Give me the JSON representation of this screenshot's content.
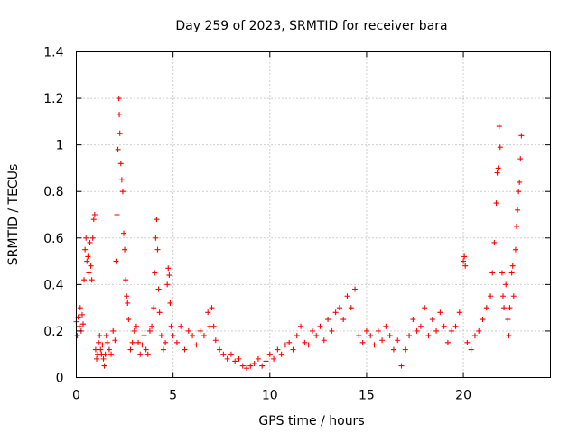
{
  "chart_data": {
    "type": "scatter",
    "title": "Day 259 of 2023, SRMTID for receiver bara",
    "xlabel": "GPS time / hours",
    "ylabel": "SRMTID / TECUs",
    "xlim": [
      0,
      24.5
    ],
    "ylim": [
      0,
      1.4
    ],
    "xticks": [
      0,
      5,
      10,
      15,
      20
    ],
    "xtick_labels": [
      "0",
      "5",
      "10",
      "15",
      "20"
    ],
    "yticks": [
      0,
      0.2,
      0.4,
      0.6,
      0.8,
      1.0,
      1.2,
      1.4
    ],
    "ytick_labels": [
      "0",
      "0.2",
      "0.4",
      "0.6",
      "0.8",
      "1",
      "1.2",
      "1.4"
    ],
    "grid": true,
    "marker": "+",
    "color": "#ff0000",
    "series": [
      {
        "name": "SRMTID",
        "points": [
          [
            0.0,
            0.24
          ],
          [
            0.05,
            0.18
          ],
          [
            0.1,
            0.26
          ],
          [
            0.15,
            0.22
          ],
          [
            0.2,
            0.3
          ],
          [
            0.25,
            0.2
          ],
          [
            0.3,
            0.27
          ],
          [
            0.35,
            0.23
          ],
          [
            0.4,
            0.42
          ],
          [
            0.45,
            0.55
          ],
          [
            0.5,
            0.6
          ],
          [
            0.55,
            0.5
          ],
          [
            0.6,
            0.52
          ],
          [
            0.65,
            0.45
          ],
          [
            0.7,
            0.58
          ],
          [
            0.75,
            0.48
          ],
          [
            0.8,
            0.42
          ],
          [
            0.85,
            0.6
          ],
          [
            0.9,
            0.68
          ],
          [
            0.95,
            0.7
          ],
          [
            1.0,
            0.12
          ],
          [
            1.05,
            0.08
          ],
          [
            1.1,
            0.1
          ],
          [
            1.15,
            0.15
          ],
          [
            1.2,
            0.18
          ],
          [
            1.25,
            0.12
          ],
          [
            1.3,
            0.1
          ],
          [
            1.35,
            0.14
          ],
          [
            1.4,
            0.08
          ],
          [
            1.45,
            0.05
          ],
          [
            1.5,
            0.1
          ],
          [
            1.55,
            0.18
          ],
          [
            1.6,
            0.15
          ],
          [
            1.7,
            0.12
          ],
          [
            1.8,
            0.1
          ],
          [
            1.9,
            0.2
          ],
          [
            2.0,
            0.16
          ],
          [
            2.05,
            0.5
          ],
          [
            2.1,
            0.7
          ],
          [
            2.15,
            0.98
          ],
          [
            2.2,
            1.2
          ],
          [
            2.22,
            1.13
          ],
          [
            2.25,
            1.05
          ],
          [
            2.3,
            0.92
          ],
          [
            2.35,
            0.85
          ],
          [
            2.4,
            0.8
          ],
          [
            2.45,
            0.62
          ],
          [
            2.5,
            0.55
          ],
          [
            2.55,
            0.42
          ],
          [
            2.6,
            0.35
          ],
          [
            2.65,
            0.32
          ],
          [
            2.7,
            0.25
          ],
          [
            2.8,
            0.12
          ],
          [
            2.9,
            0.15
          ],
          [
            3.0,
            0.2
          ],
          [
            3.1,
            0.22
          ],
          [
            3.2,
            0.15
          ],
          [
            3.3,
            0.1
          ],
          [
            3.4,
            0.14
          ],
          [
            3.5,
            0.18
          ],
          [
            3.6,
            0.12
          ],
          [
            3.7,
            0.1
          ],
          [
            3.8,
            0.2
          ],
          [
            3.9,
            0.22
          ],
          [
            4.0,
            0.3
          ],
          [
            4.05,
            0.45
          ],
          [
            4.1,
            0.6
          ],
          [
            4.15,
            0.68
          ],
          [
            4.2,
            0.55
          ],
          [
            4.25,
            0.38
          ],
          [
            4.3,
            0.28
          ],
          [
            4.4,
            0.18
          ],
          [
            4.5,
            0.12
          ],
          [
            4.6,
            0.15
          ],
          [
            4.7,
            0.4
          ],
          [
            4.75,
            0.47
          ],
          [
            4.8,
            0.44
          ],
          [
            4.85,
            0.32
          ],
          [
            4.9,
            0.22
          ],
          [
            5.0,
            0.18
          ],
          [
            5.2,
            0.15
          ],
          [
            5.4,
            0.22
          ],
          [
            5.6,
            0.12
          ],
          [
            5.8,
            0.2
          ],
          [
            6.0,
            0.18
          ],
          [
            6.2,
            0.14
          ],
          [
            6.4,
            0.2
          ],
          [
            6.6,
            0.18
          ],
          [
            6.8,
            0.28
          ],
          [
            6.9,
            0.22
          ],
          [
            7.0,
            0.3
          ],
          [
            7.1,
            0.22
          ],
          [
            7.2,
            0.16
          ],
          [
            7.4,
            0.12
          ],
          [
            7.6,
            0.1
          ],
          [
            7.8,
            0.08
          ],
          [
            8.0,
            0.1
          ],
          [
            8.2,
            0.07
          ],
          [
            8.4,
            0.08
          ],
          [
            8.6,
            0.05
          ],
          [
            8.8,
            0.04
          ],
          [
            9.0,
            0.05
          ],
          [
            9.2,
            0.06
          ],
          [
            9.4,
            0.08
          ],
          [
            9.6,
            0.05
          ],
          [
            9.8,
            0.07
          ],
          [
            10.0,
            0.1
          ],
          [
            10.2,
            0.08
          ],
          [
            10.4,
            0.12
          ],
          [
            10.6,
            0.1
          ],
          [
            10.8,
            0.14
          ],
          [
            11.0,
            0.15
          ],
          [
            11.2,
            0.12
          ],
          [
            11.4,
            0.18
          ],
          [
            11.6,
            0.22
          ],
          [
            11.8,
            0.15
          ],
          [
            12.0,
            0.14
          ],
          [
            12.2,
            0.2
          ],
          [
            12.4,
            0.18
          ],
          [
            12.6,
            0.22
          ],
          [
            12.8,
            0.16
          ],
          [
            13.0,
            0.25
          ],
          [
            13.2,
            0.2
          ],
          [
            13.4,
            0.28
          ],
          [
            13.6,
            0.3
          ],
          [
            13.8,
            0.25
          ],
          [
            14.0,
            0.35
          ],
          [
            14.2,
            0.3
          ],
          [
            14.4,
            0.38
          ],
          [
            14.6,
            0.18
          ],
          [
            14.8,
            0.15
          ],
          [
            15.0,
            0.2
          ],
          [
            15.2,
            0.18
          ],
          [
            15.4,
            0.14
          ],
          [
            15.6,
            0.2
          ],
          [
            15.8,
            0.16
          ],
          [
            16.0,
            0.22
          ],
          [
            16.2,
            0.18
          ],
          [
            16.4,
            0.12
          ],
          [
            16.6,
            0.16
          ],
          [
            16.8,
            0.05
          ],
          [
            17.0,
            0.12
          ],
          [
            17.2,
            0.18
          ],
          [
            17.4,
            0.25
          ],
          [
            17.6,
            0.2
          ],
          [
            17.8,
            0.22
          ],
          [
            18.0,
            0.3
          ],
          [
            18.2,
            0.18
          ],
          [
            18.4,
            0.25
          ],
          [
            18.6,
            0.2
          ],
          [
            18.8,
            0.28
          ],
          [
            19.0,
            0.22
          ],
          [
            19.2,
            0.15
          ],
          [
            19.4,
            0.2
          ],
          [
            19.6,
            0.22
          ],
          [
            19.8,
            0.28
          ],
          [
            20.0,
            0.5
          ],
          [
            20.05,
            0.52
          ],
          [
            20.1,
            0.48
          ],
          [
            20.2,
            0.15
          ],
          [
            20.4,
            0.12
          ],
          [
            20.6,
            0.18
          ],
          [
            20.8,
            0.2
          ],
          [
            21.0,
            0.25
          ],
          [
            21.2,
            0.3
          ],
          [
            21.4,
            0.35
          ],
          [
            21.5,
            0.45
          ],
          [
            21.6,
            0.58
          ],
          [
            21.7,
            0.75
          ],
          [
            21.75,
            0.88
          ],
          [
            21.8,
            0.9
          ],
          [
            21.85,
            1.08
          ],
          [
            21.9,
            0.99
          ],
          [
            22.0,
            0.45
          ],
          [
            22.05,
            0.35
          ],
          [
            22.1,
            0.3
          ],
          [
            22.2,
            0.4
          ],
          [
            22.3,
            0.25
          ],
          [
            22.35,
            0.18
          ],
          [
            22.4,
            0.3
          ],
          [
            22.5,
            0.45
          ],
          [
            22.55,
            0.48
          ],
          [
            22.6,
            0.35
          ],
          [
            22.7,
            0.55
          ],
          [
            22.75,
            0.65
          ],
          [
            22.8,
            0.72
          ],
          [
            22.85,
            0.8
          ],
          [
            22.9,
            0.84
          ],
          [
            22.95,
            0.94
          ],
          [
            23.0,
            1.04
          ]
        ]
      }
    ]
  }
}
